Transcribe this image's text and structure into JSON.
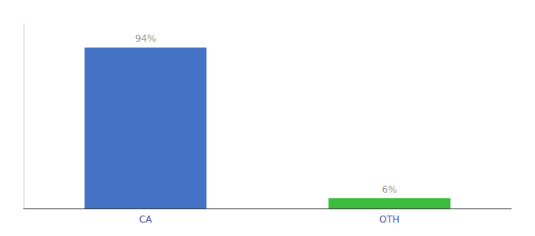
{
  "chart_data": {
    "type": "bar",
    "categories": [
      "CA",
      "OTH"
    ],
    "values": [
      94,
      6
    ],
    "value_labels": [
      "94%",
      "6%"
    ],
    "colors": [
      "#4472c4",
      "#3dbb3d"
    ],
    "ylim": [
      0,
      108
    ],
    "data_labels": true,
    "tick_labels": "x",
    "grid": false
  }
}
